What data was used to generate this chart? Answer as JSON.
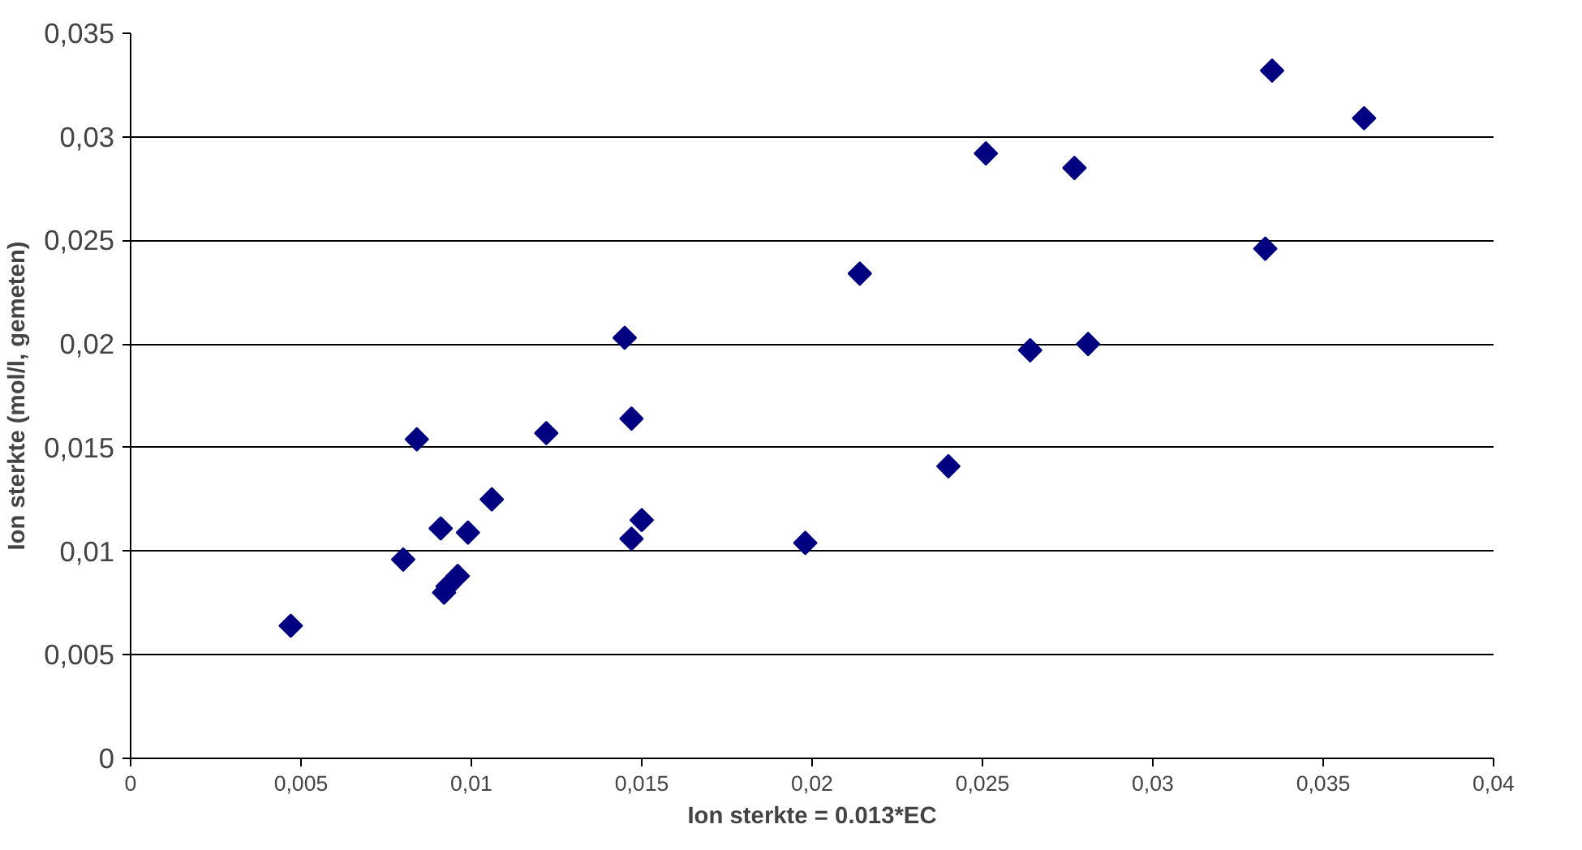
{
  "chart_data": {
    "type": "scatter",
    "xlabel": "Ion sterkte = 0.013*EC",
    "ylabel": "Ion sterkte (mol/l, gemeten)",
    "marker": "diamond",
    "grid": "y",
    "x": [
      0.0047,
      0.008,
      0.0084,
      0.0091,
      0.0092,
      0.0093,
      0.0096,
      0.0099,
      0.0106,
      0.0122,
      0.0145,
      0.0147,
      0.0147,
      0.015,
      0.0198,
      0.0214,
      0.024,
      0.0251,
      0.0264,
      0.0277,
      0.0281,
      0.0333,
      0.0335,
      0.0362
    ],
    "series": [
      {
        "color": "#000080",
        "values": [
          0.0064,
          0.0096,
          0.0154,
          0.0111,
          0.008,
          0.0083,
          0.0088,
          0.0109,
          0.0125,
          0.0157,
          0.0203,
          0.0164,
          0.0106,
          0.0115,
          0.0104,
          0.0234,
          0.0141,
          0.0292,
          0.0197,
          0.0285,
          0.02,
          0.0246,
          0.0332,
          0.0309
        ]
      }
    ],
    "xlim": [
      0,
      0.04
    ],
    "ylim": [
      0,
      0.035
    ],
    "xticks": [
      0,
      {
        "value": 0.005,
        "label": "0,005"
      },
      {
        "value": 0.01,
        "label": "0,01"
      },
      {
        "value": 0.015,
        "label": "0,015"
      },
      {
        "value": 0.02,
        "label": "0,02"
      },
      {
        "value": 0.025,
        "label": "0,025"
      },
      {
        "value": 0.03,
        "label": "0,03"
      },
      {
        "value": 0.035,
        "label": "0,035"
      },
      {
        "value": 0.04,
        "label": "0,04"
      }
    ],
    "yticks": [
      0,
      {
        "value": 0.005,
        "label": "0,005"
      },
      {
        "value": 0.01,
        "label": "0,01"
      },
      {
        "value": 0.015,
        "label": "0,015"
      },
      {
        "value": 0.02,
        "label": "0,02"
      },
      {
        "value": 0.025,
        "label": "0,025"
      },
      {
        "value": 0.03,
        "label": "0,03"
      },
      {
        "value": 0.035,
        "label": "0,035"
      }
    ]
  }
}
